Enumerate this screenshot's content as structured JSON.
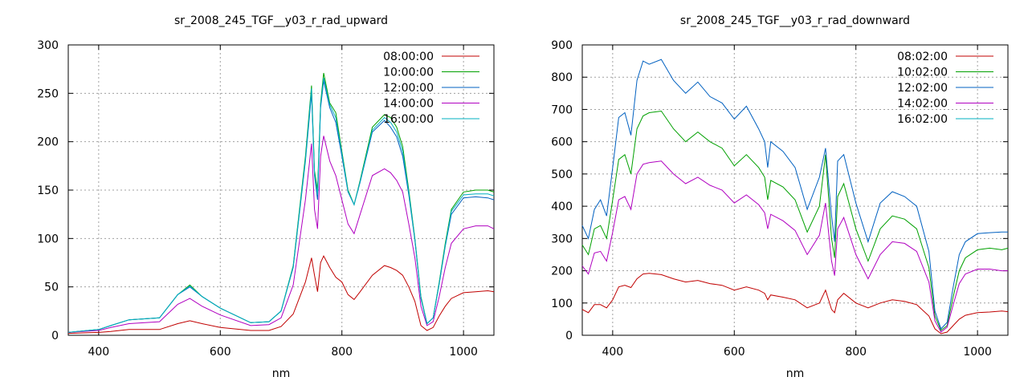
{
  "chart_data": [
    {
      "type": "line",
      "title": "sr_2008_245_TGF__y03_r_rad_upward",
      "xlabel": "nm",
      "ylabel": "",
      "xlim": [
        350,
        1050
      ],
      "ylim": [
        0,
        300
      ],
      "xticks": [
        400,
        600,
        800,
        1000
      ],
      "yticks": [
        0,
        50,
        100,
        150,
        200,
        250,
        300
      ],
      "grid": true,
      "legend": "top-right",
      "series": [
        {
          "name": "08:00:00",
          "color": "#c00000",
          "x": [
            350,
            400,
            420,
            450,
            500,
            530,
            550,
            570,
            600,
            650,
            680,
            700,
            720,
            740,
            750,
            755,
            760,
            765,
            770,
            780,
            790,
            800,
            810,
            820,
            830,
            850,
            870,
            880,
            890,
            900,
            910,
            920,
            930,
            940,
            950,
            960,
            970,
            980,
            1000,
            1020,
            1040,
            1050
          ],
          "y": [
            2,
            3,
            4,
            6,
            6,
            12,
            15,
            12,
            8,
            5,
            5,
            9,
            22,
            55,
            80,
            62,
            45,
            75,
            82,
            70,
            60,
            55,
            42,
            37,
            45,
            62,
            72,
            70,
            67,
            62,
            50,
            35,
            10,
            5,
            8,
            20,
            30,
            38,
            44,
            45,
            46,
            45
          ]
        },
        {
          "name": "10:00:00",
          "color": "#00a000",
          "x": [
            350,
            400,
            420,
            450,
            500,
            530,
            550,
            570,
            600,
            650,
            680,
            700,
            720,
            740,
            750,
            755,
            760,
            765,
            770,
            780,
            790,
            800,
            810,
            820,
            830,
            850,
            870,
            880,
            890,
            900,
            910,
            920,
            930,
            940,
            950,
            960,
            970,
            980,
            1000,
            1020,
            1040,
            1050
          ],
          "y": [
            3,
            6,
            10,
            16,
            18,
            42,
            52,
            40,
            28,
            13,
            14,
            25,
            72,
            185,
            258,
            170,
            150,
            240,
            271,
            240,
            230,
            190,
            150,
            135,
            160,
            215,
            228,
            225,
            215,
            195,
            150,
            100,
            40,
            12,
            18,
            55,
            95,
            130,
            148,
            150,
            150,
            148
          ]
        },
        {
          "name": "12:00:00",
          "color": "#0060c0",
          "x": [
            350,
            400,
            420,
            450,
            500,
            530,
            550,
            570,
            600,
            650,
            680,
            700,
            720,
            740,
            750,
            755,
            760,
            765,
            770,
            780,
            790,
            800,
            810,
            820,
            830,
            850,
            870,
            880,
            890,
            900,
            910,
            920,
            930,
            940,
            950,
            960,
            970,
            980,
            1000,
            1020,
            1040,
            1050
          ],
          "y": [
            3,
            6,
            10,
            16,
            18,
            42,
            50,
            40,
            28,
            13,
            14,
            25,
            70,
            180,
            250,
            165,
            140,
            235,
            263,
            235,
            220,
            185,
            148,
            135,
            158,
            210,
            222,
            215,
            205,
            185,
            145,
            98,
            38,
            12,
            18,
            53,
            92,
            125,
            142,
            143,
            142,
            140
          ]
        },
        {
          "name": "14:00:00",
          "color": "#b000c0",
          "x": [
            350,
            400,
            420,
            450,
            500,
            530,
            550,
            570,
            600,
            650,
            680,
            700,
            720,
            740,
            750,
            755,
            760,
            765,
            770,
            780,
            790,
            800,
            810,
            820,
            830,
            850,
            870,
            880,
            890,
            900,
            910,
            920,
            930,
            940,
            950,
            960,
            970,
            980,
            1000,
            1020,
            1040,
            1050
          ],
          "y": [
            3,
            5,
            8,
            12,
            14,
            32,
            38,
            30,
            21,
            10,
            11,
            18,
            52,
            140,
            198,
            130,
            110,
            185,
            206,
            180,
            165,
            140,
            115,
            105,
            125,
            165,
            172,
            168,
            160,
            148,
            115,
            80,
            30,
            10,
            14,
            40,
            70,
            95,
            110,
            113,
            113,
            110
          ]
        },
        {
          "name": "16:00:00",
          "color": "#00b0c0",
          "x": [
            350,
            400,
            420,
            450,
            500,
            530,
            550,
            570,
            600,
            650,
            680,
            700,
            720,
            740,
            750,
            755,
            760,
            765,
            770,
            780,
            790,
            800,
            810,
            820,
            830,
            850,
            870,
            880,
            890,
            900,
            910,
            920,
            930,
            940,
            950,
            960,
            970,
            980,
            1000,
            1020,
            1040,
            1050
          ],
          "y": [
            3,
            6,
            10,
            16,
            18,
            42,
            51,
            40,
            28,
            13,
            14,
            25,
            71,
            182,
            255,
            167,
            145,
            238,
            266,
            238,
            225,
            188,
            149,
            135,
            159,
            212,
            225,
            220,
            210,
            190,
            148,
            99,
            39,
            12,
            18,
            54,
            93,
            128,
            145,
            146,
            146,
            144
          ]
        }
      ]
    },
    {
      "type": "line",
      "title": "sr_2008_245_TGF__y03_r_rad_downward",
      "xlabel": "nm",
      "ylabel": "",
      "xlim": [
        350,
        1050
      ],
      "ylim": [
        0,
        900
      ],
      "xticks": [
        400,
        600,
        800,
        1000
      ],
      "yticks": [
        0,
        100,
        200,
        300,
        400,
        500,
        600,
        700,
        800,
        900
      ],
      "grid": true,
      "legend": "top-right",
      "series": [
        {
          "name": "08:02:00",
          "color": "#c00000",
          "x": [
            350,
            360,
            370,
            380,
            390,
            400,
            410,
            420,
            430,
            440,
            450,
            460,
            480,
            500,
            520,
            540,
            560,
            580,
            600,
            620,
            640,
            650,
            655,
            660,
            680,
            700,
            720,
            740,
            750,
            760,
            765,
            770,
            780,
            800,
            820,
            840,
            860,
            880,
            900,
            920,
            930,
            940,
            950,
            960,
            970,
            980,
            1000,
            1020,
            1040,
            1050
          ],
          "y": [
            80,
            70,
            95,
            95,
            85,
            110,
            150,
            155,
            148,
            175,
            190,
            192,
            188,
            175,
            165,
            170,
            160,
            155,
            140,
            150,
            140,
            130,
            110,
            125,
            118,
            110,
            85,
            100,
            140,
            80,
            70,
            110,
            130,
            100,
            85,
            100,
            110,
            105,
            95,
            60,
            20,
            5,
            10,
            30,
            50,
            62,
            70,
            72,
            75,
            73
          ]
        },
        {
          "name": "10:02:00",
          "color": "#00a000",
          "x": [
            350,
            360,
            370,
            380,
            390,
            400,
            410,
            420,
            430,
            440,
            450,
            460,
            480,
            500,
            520,
            540,
            560,
            580,
            600,
            620,
            640,
            650,
            655,
            660,
            680,
            700,
            720,
            740,
            750,
            760,
            765,
            770,
            780,
            800,
            820,
            840,
            860,
            880,
            900,
            920,
            930,
            940,
            950,
            960,
            970,
            980,
            1000,
            1020,
            1040,
            1050
          ],
          "y": [
            280,
            250,
            330,
            340,
            300,
            420,
            545,
            560,
            500,
            640,
            680,
            690,
            695,
            640,
            600,
            630,
            600,
            580,
            525,
            560,
            520,
            490,
            420,
            480,
            460,
            420,
            320,
            400,
            560,
            300,
            240,
            430,
            470,
            330,
            230,
            330,
            370,
            360,
            330,
            210,
            60,
            15,
            30,
            120,
            200,
            240,
            265,
            270,
            265,
            270
          ]
        },
        {
          "name": "12:02:00",
          "color": "#0060c0",
          "x": [
            350,
            360,
            370,
            380,
            390,
            400,
            410,
            420,
            430,
            440,
            450,
            460,
            480,
            500,
            520,
            540,
            560,
            580,
            600,
            620,
            640,
            650,
            655,
            660,
            680,
            700,
            720,
            740,
            750,
            760,
            765,
            770,
            780,
            800,
            820,
            840,
            860,
            880,
            900,
            920,
            930,
            940,
            950,
            960,
            970,
            980,
            1000,
            1020,
            1040,
            1050
          ],
          "y": [
            340,
            300,
            390,
            420,
            370,
            520,
            675,
            690,
            620,
            790,
            850,
            840,
            855,
            790,
            750,
            785,
            740,
            720,
            670,
            710,
            640,
            600,
            520,
            600,
            570,
            520,
            390,
            490,
            580,
            370,
            290,
            540,
            560,
            410,
            290,
            410,
            445,
            430,
            400,
            260,
            75,
            20,
            40,
            150,
            250,
            290,
            315,
            318,
            320,
            320
          ]
        },
        {
          "name": "14:02:00",
          "color": "#b000c0",
          "x": [
            350,
            360,
            370,
            380,
            390,
            400,
            410,
            420,
            430,
            440,
            450,
            460,
            480,
            500,
            520,
            540,
            560,
            580,
            600,
            620,
            640,
            650,
            655,
            660,
            680,
            700,
            720,
            740,
            750,
            760,
            765,
            770,
            780,
            800,
            820,
            840,
            860,
            880,
            900,
            920,
            930,
            940,
            950,
            960,
            970,
            980,
            1000,
            1020,
            1040,
            1050
          ],
          "y": [
            215,
            190,
            255,
            260,
            230,
            320,
            420,
            430,
            390,
            500,
            530,
            535,
            540,
            500,
            470,
            490,
            465,
            450,
            410,
            435,
            405,
            380,
            330,
            375,
            355,
            325,
            250,
            310,
            410,
            230,
            185,
            330,
            365,
            250,
            175,
            250,
            290,
            285,
            260,
            165,
            45,
            10,
            25,
            95,
            160,
            190,
            205,
            205,
            200,
            200
          ]
        },
        {
          "name": "16:02:00",
          "color": "#00b0c0",
          "x": [
            350,
            400,
            450,
            500,
            550,
            600,
            650,
            700,
            750,
            800,
            850,
            900,
            930,
            940,
            950,
            960,
            980,
            1000,
            1050
          ],
          "y": [
            0,
            0,
            0,
            0,
            0,
            0,
            0,
            0,
            0,
            0,
            0,
            0,
            0,
            0,
            0,
            0,
            0,
            0,
            0
          ]
        }
      ]
    }
  ]
}
